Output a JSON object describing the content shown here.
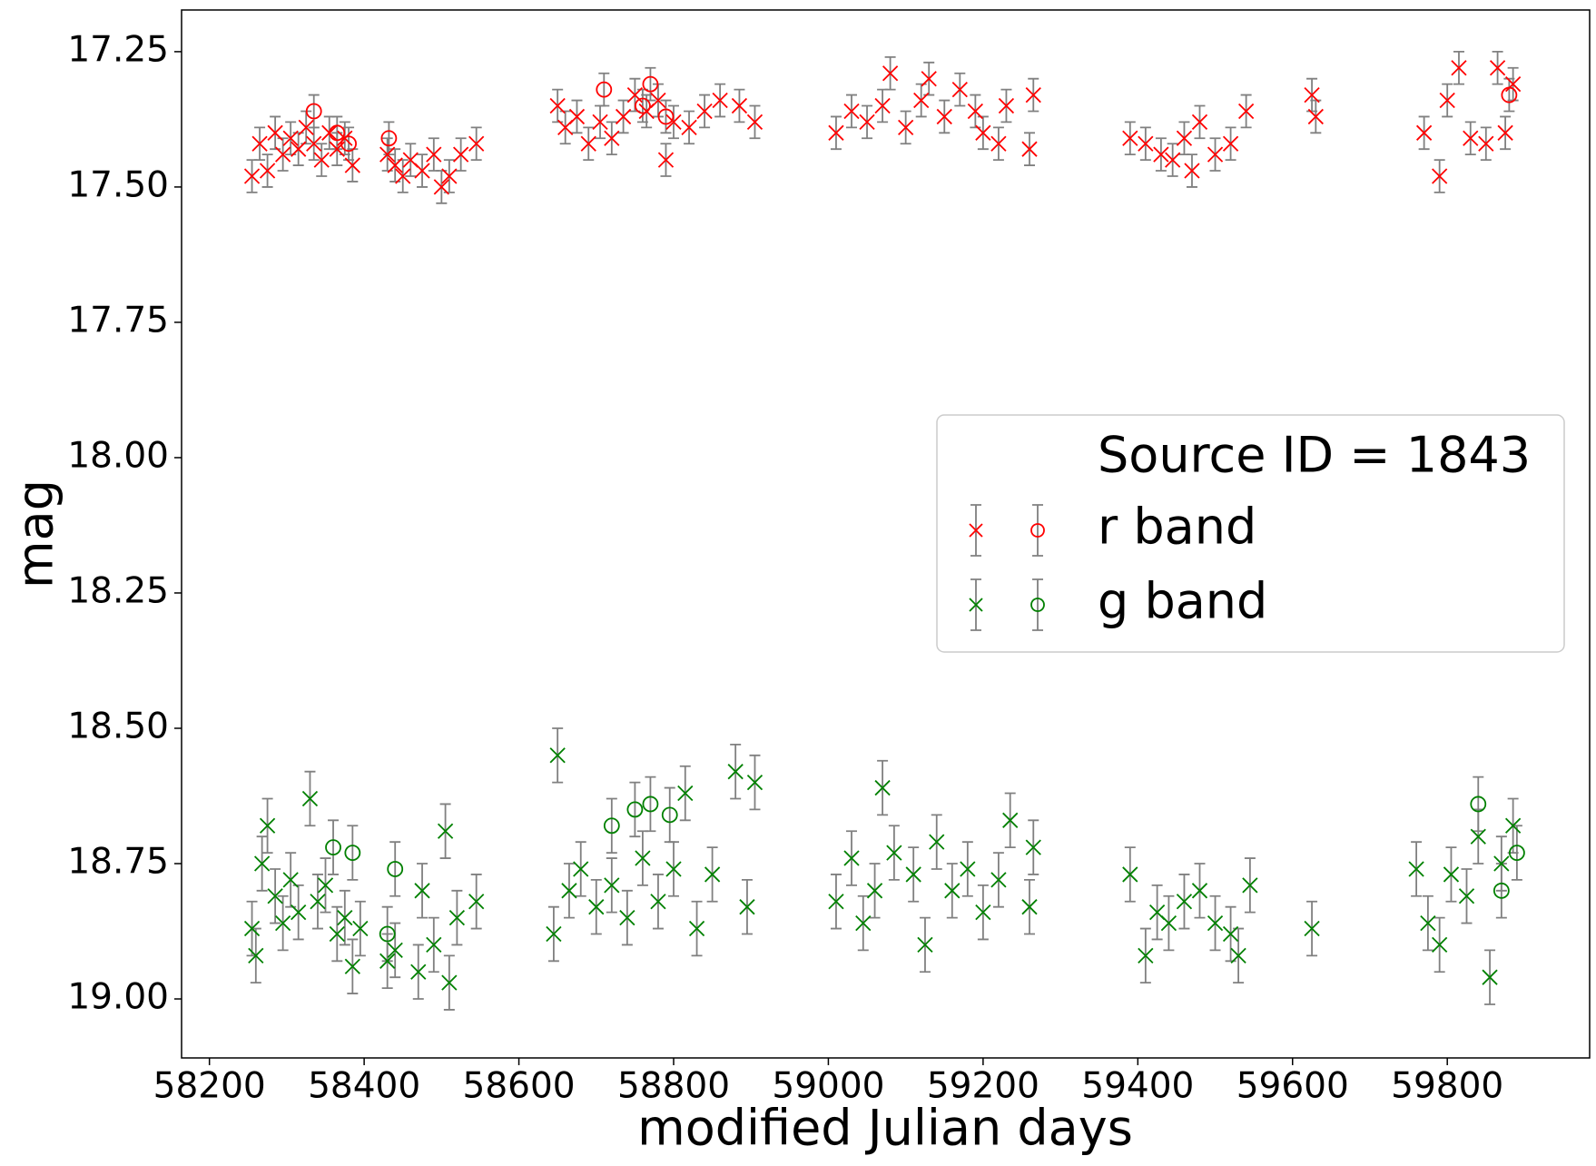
{
  "chart_data": {
    "type": "errorbar_scatter",
    "xlabel": "modified Julian days",
    "ylabel": "mag",
    "legend_title": "Source ID = 1843",
    "legend_loc": "center right",
    "xlim": [
      58164,
      59984
    ],
    "xticks": [
      58200,
      58400,
      58600,
      58800,
      59000,
      59200,
      59400,
      59600,
      59800
    ],
    "ylim": [
      19.109,
      17.173
    ],
    "yticks": [
      17.25,
      {
        "value": 17.5,
        "label": "17.50"
      },
      17.75,
      {
        "value": 18,
        "label": "18.00"
      },
      18.25,
      {
        "value": 18.5,
        "label": "18.50"
      },
      18.75,
      {
        "value": 19,
        "label": "19.00"
      }
    ],
    "errorbar_color": "#808080",
    "series": [
      {
        "name": "r band",
        "color": "#ff0000",
        "error": 0.03,
        "x": [
          58255,
          58265,
          58275,
          58285,
          58295,
          58305,
          58315,
          58325,
          58335,
          58345,
          58355,
          58365,
          58375,
          58385,
          58430,
          58440,
          58450,
          58460,
          58475,
          58490,
          58500,
          58510,
          58525,
          58545,
          58650,
          58660,
          58675,
          58690,
          58705,
          58720,
          58735,
          58750,
          58765,
          58780,
          58790,
          58800,
          58820,
          58840,
          58860,
          58885,
          58905,
          59010,
          59030,
          59050,
          59070,
          59080,
          59100,
          59120,
          59130,
          59150,
          59170,
          59190,
          59200,
          59220,
          59230,
          59260,
          59265,
          59390,
          59410,
          59430,
          59445,
          59460,
          59470,
          59480,
          59500,
          59520,
          59540,
          59625,
          59630,
          59770,
          59790,
          59800,
          59815,
          59830,
          59850,
          59865,
          59875,
          59885,
          58335,
          58365,
          58380,
          58432,
          58710,
          58760,
          58770,
          58790,
          59880
        ],
        "values": [
          17.48,
          17.42,
          17.47,
          17.4,
          17.44,
          17.41,
          17.43,
          17.39,
          17.42,
          17.45,
          17.4,
          17.43,
          17.41,
          17.46,
          17.44,
          17.46,
          17.48,
          17.45,
          17.47,
          17.44,
          17.5,
          17.48,
          17.44,
          17.42,
          17.35,
          17.39,
          17.37,
          17.42,
          17.38,
          17.41,
          17.37,
          17.33,
          17.36,
          17.34,
          17.45,
          17.38,
          17.39,
          17.36,
          17.34,
          17.35,
          17.38,
          17.4,
          17.36,
          17.38,
          17.35,
          17.29,
          17.39,
          17.34,
          17.3,
          17.37,
          17.32,
          17.36,
          17.4,
          17.42,
          17.35,
          17.43,
          17.33,
          17.41,
          17.42,
          17.44,
          17.45,
          17.41,
          17.47,
          17.38,
          17.44,
          17.42,
          17.36,
          17.33,
          17.37,
          17.4,
          17.48,
          17.34,
          17.28,
          17.41,
          17.42,
          17.28,
          17.4,
          17.31,
          17.36,
          17.4,
          17.42,
          17.41,
          17.32,
          17.35,
          17.31,
          17.37,
          17.33
        ],
        "markers": [
          "x",
          "x",
          "x",
          "x",
          "x",
          "x",
          "x",
          "x",
          "x",
          "x",
          "x",
          "x",
          "x",
          "x",
          "x",
          "x",
          "x",
          "x",
          "x",
          "x",
          "x",
          "x",
          "x",
          "x",
          "x",
          "x",
          "x",
          "x",
          "x",
          "x",
          "x",
          "x",
          "x",
          "x",
          "x",
          "x",
          "x",
          "x",
          "x",
          "x",
          "x",
          "x",
          "x",
          "x",
          "x",
          "x",
          "x",
          "x",
          "x",
          "x",
          "x",
          "x",
          "x",
          "x",
          "x",
          "x",
          "x",
          "x",
          "x",
          "x",
          "x",
          "x",
          "x",
          "x",
          "x",
          "x",
          "x",
          "x",
          "x",
          "x",
          "x",
          "x",
          "x",
          "x",
          "x",
          "x",
          "x",
          "x",
          "o",
          "o",
          "o",
          "o",
          "o",
          "o",
          "o",
          "o",
          "o"
        ]
      },
      {
        "name": "g band",
        "color": "#008000",
        "error": 0.05,
        "x": [
          58255,
          58260,
          58268,
          58275,
          58285,
          58295,
          58305,
          58315,
          58330,
          58340,
          58350,
          58365,
          58375,
          58385,
          58395,
          58430,
          58440,
          58470,
          58475,
          58490,
          58505,
          58510,
          58520,
          58545,
          58645,
          58650,
          58665,
          58680,
          58700,
          58720,
          58740,
          58760,
          58780,
          58800,
          58815,
          58830,
          58850,
          58880,
          58895,
          58905,
          59010,
          59030,
          59045,
          59060,
          59070,
          59085,
          59110,
          59125,
          59140,
          59160,
          59180,
          59200,
          59220,
          59235,
          59260,
          59265,
          59390,
          59410,
          59425,
          59440,
          59460,
          59480,
          59500,
          59520,
          59530,
          59545,
          59625,
          59760,
          59775,
          59790,
          59805,
          59825,
          59840,
          59855,
          59870,
          59885,
          58360,
          58385,
          58430,
          58440,
          58720,
          58750,
          58770,
          58795,
          59840,
          59870,
          59890
        ],
        "values": [
          18.87,
          18.92,
          18.75,
          18.68,
          18.81,
          18.86,
          18.78,
          18.84,
          18.63,
          18.82,
          18.79,
          18.88,
          18.85,
          18.94,
          18.87,
          18.93,
          18.91,
          18.95,
          18.8,
          18.9,
          18.69,
          18.97,
          18.85,
          18.82,
          18.88,
          18.55,
          18.8,
          18.76,
          18.83,
          18.79,
          18.85,
          18.74,
          18.82,
          18.76,
          18.62,
          18.87,
          18.77,
          18.58,
          18.83,
          18.6,
          18.82,
          18.74,
          18.86,
          18.8,
          18.61,
          18.73,
          18.77,
          18.9,
          18.71,
          18.8,
          18.76,
          18.84,
          18.78,
          18.67,
          18.83,
          18.72,
          18.77,
          18.92,
          18.84,
          18.86,
          18.82,
          18.8,
          18.86,
          18.88,
          18.92,
          18.79,
          18.87,
          18.76,
          18.86,
          18.9,
          18.77,
          18.81,
          18.7,
          18.96,
          18.75,
          18.68,
          18.72,
          18.73,
          18.88,
          18.76,
          18.68,
          18.65,
          18.64,
          18.66,
          18.64,
          18.8,
          18.73
        ],
        "markers": [
          "x",
          "x",
          "x",
          "x",
          "x",
          "x",
          "x",
          "x",
          "x",
          "x",
          "x",
          "x",
          "x",
          "x",
          "x",
          "x",
          "x",
          "x",
          "x",
          "x",
          "x",
          "x",
          "x",
          "x",
          "x",
          "x",
          "x",
          "x",
          "x",
          "x",
          "x",
          "x",
          "x",
          "x",
          "x",
          "x",
          "x",
          "x",
          "x",
          "x",
          "x",
          "x",
          "x",
          "x",
          "x",
          "x",
          "x",
          "x",
          "x",
          "x",
          "x",
          "x",
          "x",
          "x",
          "x",
          "x",
          "x",
          "x",
          "x",
          "x",
          "x",
          "x",
          "x",
          "x",
          "x",
          "x",
          "x",
          "x",
          "x",
          "x",
          "x",
          "x",
          "x",
          "x",
          "x",
          "x",
          "o",
          "o",
          "o",
          "o",
          "o",
          "o",
          "o",
          "o",
          "o",
          "o",
          "o"
        ]
      }
    ]
  }
}
